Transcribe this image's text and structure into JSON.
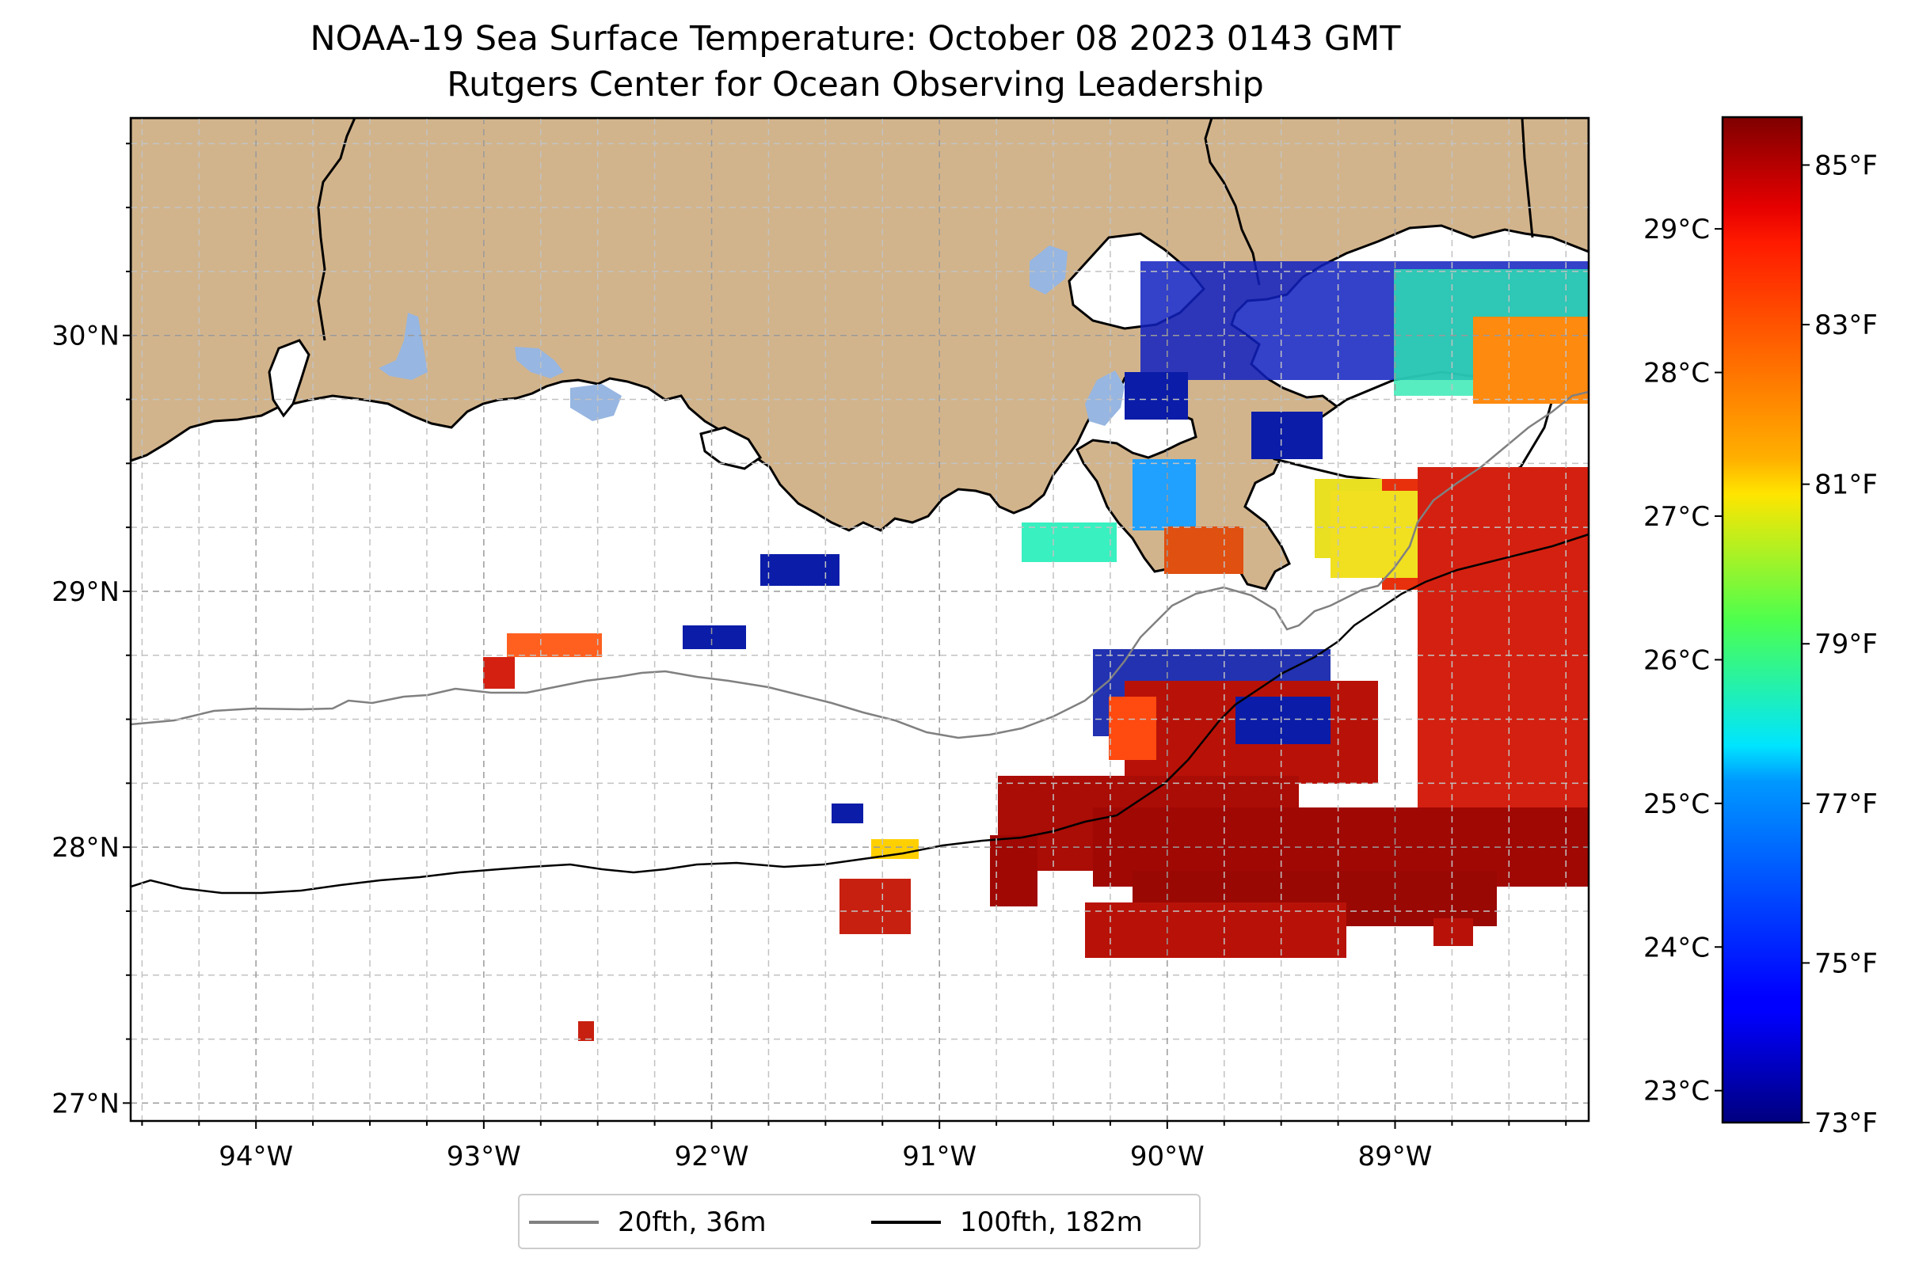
{
  "title": {
    "line1": "NOAA-19 Sea Surface Temperature: October 08 2023 0143 GMT",
    "line2": "Rutgers Center for Ocean Observing Leadership"
  },
  "map": {
    "lon_range": [
      -94.55,
      -88.15
    ],
    "lat_range": [
      26.93,
      30.85
    ],
    "lon_ticks": [
      {
        "value": -94,
        "label": "94°W"
      },
      {
        "value": -93,
        "label": "93°W"
      },
      {
        "value": -92,
        "label": "92°W"
      },
      {
        "value": -91,
        "label": "91°W"
      },
      {
        "value": -90,
        "label": "90°W"
      },
      {
        "value": -89,
        "label": "89°W"
      }
    ],
    "lat_ticks": [
      {
        "value": 27,
        "label": "27°N"
      },
      {
        "value": 28,
        "label": "28°N"
      },
      {
        "value": 29,
        "label": "29°N"
      },
      {
        "value": 30,
        "label": "30°N"
      }
    ],
    "minor_grid_step_deg": 0.25,
    "land_color": "#d2b48c",
    "lake_color": "#97b6e1",
    "grid": "dashed"
  },
  "colorbar": {
    "colormap": "jet",
    "range_f": [
      73,
      85.6
    ],
    "fahrenheit_ticks": [
      {
        "value": 73,
        "label": "73°F"
      },
      {
        "value": 75,
        "label": "75°F"
      },
      {
        "value": 77,
        "label": "77°F"
      },
      {
        "value": 79,
        "label": "79°F"
      },
      {
        "value": 81,
        "label": "81°F"
      },
      {
        "value": 83,
        "label": "83°F"
      },
      {
        "value": 85,
        "label": "85°F"
      }
    ],
    "celsius_ticks": [
      {
        "value": 23,
        "label": "23°C"
      },
      {
        "value": 24,
        "label": "24°C"
      },
      {
        "value": 25,
        "label": "25°C"
      },
      {
        "value": 26,
        "label": "26°C"
      },
      {
        "value": 27,
        "label": "27°C"
      },
      {
        "value": 28,
        "label": "28°C"
      },
      {
        "value": 29,
        "label": "29°C"
      }
    ]
  },
  "legend": {
    "items": [
      {
        "label": "20fth, 36m",
        "color": "#808080"
      },
      {
        "label": "100fth, 182m",
        "color": "#000000"
      }
    ]
  }
}
